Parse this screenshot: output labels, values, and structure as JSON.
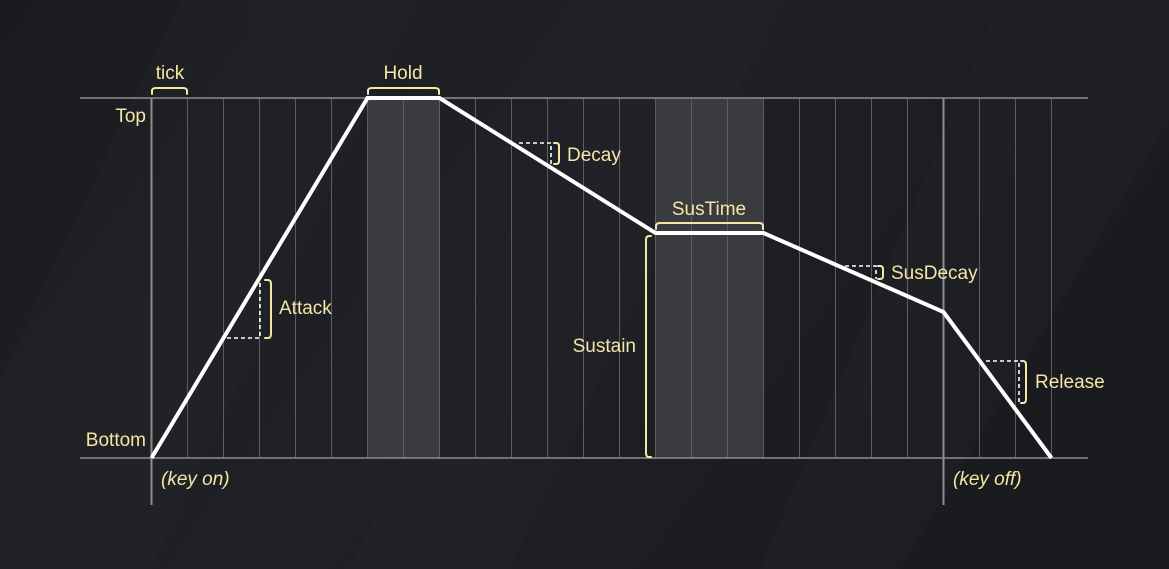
{
  "colors": {
    "background": "#1b1c20",
    "stripe": "#24252a",
    "label": "#f2e6a8",
    "envelope": "#ffffff",
    "grid_line": "#5c5d62",
    "axis_line": "#8c8d91",
    "shade": "#3a3b3f"
  },
  "labels": {
    "tick": "tick",
    "hold": "Hold",
    "top": "Top",
    "bottom": "Bottom",
    "decay": "Decay",
    "sustime": "SusTime",
    "susdecay": "SusDecay",
    "attack": "Attack",
    "sustain": "Sustain",
    "release": "Release",
    "key_on": "(key on)",
    "key_off": "(key off)"
  },
  "envelope": {
    "grid_tick_count": 25,
    "phases": [
      {
        "name": "Attack",
        "ticks": 6
      },
      {
        "name": "Hold",
        "ticks": 2
      },
      {
        "name": "Decay",
        "ticks": 6
      },
      {
        "name": "SusTime",
        "ticks": 3
      },
      {
        "name": "SusDecay",
        "ticks": 5
      },
      {
        "name": "Release",
        "ticks": 3
      }
    ],
    "key_off_tick": 22
  }
}
